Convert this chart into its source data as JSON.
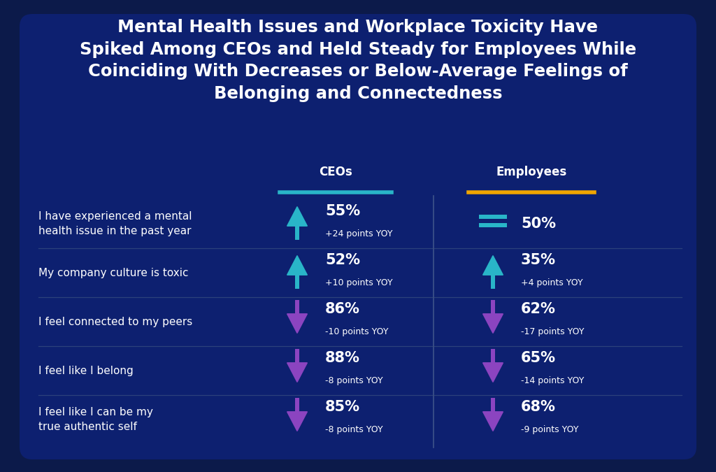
{
  "title_lines": [
    "Mental Health Issues and Workplace Toxicity Have",
    "Spiked Among CEOs and Held Steady for Employees While",
    "Coinciding With Decreases or Below-Average Feelings of",
    "Belonging and Connectedness"
  ],
  "outer_bg": "#0c1a4a",
  "inner_bg": "#0d2070",
  "text_color": "#ffffff",
  "ceo_color": "#29b5c8",
  "employee_color": "#f0a500",
  "arrow_up_teal": "#29b5c8",
  "arrow_down_purple": "#8b44c0",
  "divider_color": "#4a6090",
  "sep_color": "#3a5080",
  "col_headers": [
    "CEOs",
    "Employees"
  ],
  "rows": [
    {
      "label": "I have experienced a mental\nhealth issue in the past year",
      "ceo_pct": "55%",
      "ceo_yoy": "+24 points YOY",
      "ceo_arrow": "up_teal",
      "emp_pct": "50%",
      "emp_yoy": "",
      "emp_arrow": "steady_teal"
    },
    {
      "label": "My company culture is toxic",
      "ceo_pct": "52%",
      "ceo_yoy": "+10 points YOY",
      "ceo_arrow": "up_teal",
      "emp_pct": "35%",
      "emp_yoy": "+4 points YOY",
      "emp_arrow": "up_teal"
    },
    {
      "label": "I feel connected to my peers",
      "ceo_pct": "86%",
      "ceo_yoy": "-10 points YOY",
      "ceo_arrow": "down_purple",
      "emp_pct": "62%",
      "emp_yoy": "-17 points YOY",
      "emp_arrow": "down_purple"
    },
    {
      "label": "I feel like I belong",
      "ceo_pct": "88%",
      "ceo_yoy": "-8 points YOY",
      "ceo_arrow": "down_purple",
      "emp_pct": "65%",
      "emp_yoy": "-14 points YOY",
      "emp_arrow": "down_purple"
    },
    {
      "label": "I feel like I can be my\ntrue authentic self",
      "ceo_pct": "85%",
      "ceo_yoy": "-8 points YOY",
      "ceo_arrow": "down_purple",
      "emp_pct": "68%",
      "emp_yoy": "-9 points YOY",
      "emp_arrow": "down_purple"
    }
  ],
  "fig_width": 10.24,
  "fig_height": 6.75,
  "dpi": 100,
  "title_fontsize": 17.5,
  "header_fontsize": 12,
  "label_fontsize": 11,
  "pct_fontsize": 15,
  "yoy_fontsize": 9
}
